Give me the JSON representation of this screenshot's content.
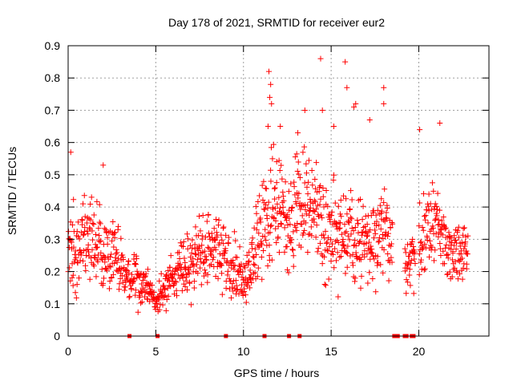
{
  "chart_data": {
    "type": "scatter",
    "title": "Day 178 of 2021, SRMTID for receiver eur2",
    "xlabel": "GPS time / hours",
    "ylabel": "SRMTID / TECUs",
    "xlim": [
      0,
      24
    ],
    "ylim": [
      0,
      0.9
    ],
    "xticks": [
      "0",
      "5",
      "10",
      "15",
      "20"
    ],
    "xtick_values": [
      0,
      5,
      10,
      15,
      20
    ],
    "yticks": [
      "0",
      "0.1",
      "0.2",
      "0.3",
      "0.4",
      "0.5",
      "0.6",
      "0.7",
      "0.8",
      "0.9"
    ],
    "ytick_values": [
      0,
      0.1,
      0.2,
      0.3,
      0.4,
      0.5,
      0.6,
      0.7,
      0.8,
      0.9
    ],
    "grid": true,
    "marker": "plus",
    "color": "#ff0000",
    "profile": {
      "x": [
        0.0,
        0.5,
        1.0,
        1.5,
        2.0,
        2.5,
        3.0,
        3.5,
        4.0,
        4.5,
        4.8,
        5.0,
        5.2,
        5.5,
        6.0,
        6.5,
        7.0,
        7.5,
        8.0,
        8.5,
        9.0,
        9.5,
        10.0,
        10.5,
        11.0,
        11.5,
        12.0,
        12.5,
        13.0,
        13.5,
        14.0,
        14.5,
        15.0,
        15.5,
        16.0,
        16.5,
        17.0,
        17.5,
        18.0,
        18.5,
        19.0,
        19.5,
        20.0,
        20.5,
        21.0,
        21.5,
        22.0,
        22.5,
        22.8
      ],
      "center": [
        0.26,
        0.25,
        0.3,
        0.28,
        0.27,
        0.25,
        0.22,
        0.18,
        0.17,
        0.15,
        0.12,
        0.1,
        0.12,
        0.15,
        0.18,
        0.2,
        0.22,
        0.26,
        0.27,
        0.25,
        0.24,
        0.2,
        0.18,
        0.22,
        0.33,
        0.38,
        0.4,
        0.36,
        0.37,
        0.42,
        0.4,
        0.35,
        0.33,
        0.32,
        0.3,
        0.3,
        0.28,
        0.31,
        0.33,
        0.3,
        0.2,
        0.22,
        0.27,
        0.33,
        0.35,
        0.28,
        0.25,
        0.27,
        0.3
      ],
      "spread": [
        0.12,
        0.1,
        0.12,
        0.11,
        0.11,
        0.1,
        0.08,
        0.07,
        0.06,
        0.05,
        0.04,
        0.03,
        0.04,
        0.05,
        0.06,
        0.07,
        0.08,
        0.09,
        0.09,
        0.09,
        0.08,
        0.08,
        0.07,
        0.09,
        0.11,
        0.13,
        0.14,
        0.13,
        0.13,
        0.14,
        0.13,
        0.14,
        0.13,
        0.12,
        0.12,
        0.11,
        0.11,
        0.11,
        0.12,
        0.1,
        0.07,
        0.07,
        0.09,
        0.1,
        0.1,
        0.09,
        0.08,
        0.08,
        0.07
      ],
      "gaps": [
        [
          18.5,
          19.2
        ],
        [
          19.8,
          20.0
        ],
        [
          22.95,
          24.0
        ]
      ],
      "sample_count": 1300
    },
    "outliers": [
      {
        "x": 11.45,
        "y": 0.82
      },
      {
        "x": 11.55,
        "y": 0.78
      },
      {
        "x": 11.5,
        "y": 0.74
      },
      {
        "x": 11.6,
        "y": 0.72
      },
      {
        "x": 11.4,
        "y": 0.65
      },
      {
        "x": 12.1,
        "y": 0.65
      },
      {
        "x": 13.1,
        "y": 0.63
      },
      {
        "x": 13.5,
        "y": 0.7
      },
      {
        "x": 14.4,
        "y": 0.86
      },
      {
        "x": 14.5,
        "y": 0.7
      },
      {
        "x": 15.15,
        "y": 0.65
      },
      {
        "x": 15.8,
        "y": 0.85
      },
      {
        "x": 15.9,
        "y": 0.77
      },
      {
        "x": 16.3,
        "y": 0.71
      },
      {
        "x": 16.4,
        "y": 0.72
      },
      {
        "x": 17.2,
        "y": 0.67
      },
      {
        "x": 18.0,
        "y": 0.77
      },
      {
        "x": 18.0,
        "y": 0.72
      },
      {
        "x": 20.05,
        "y": 0.64
      },
      {
        "x": 21.2,
        "y": 0.66
      },
      {
        "x": 0.15,
        "y": 0.57
      },
      {
        "x": 2.0,
        "y": 0.53
      }
    ],
    "zero_markers": [
      3.5,
      5.1,
      9.0,
      11.2,
      12.6,
      13.2,
      18.6,
      18.7,
      18.8,
      19.2,
      19.3,
      19.6,
      19.7
    ]
  }
}
